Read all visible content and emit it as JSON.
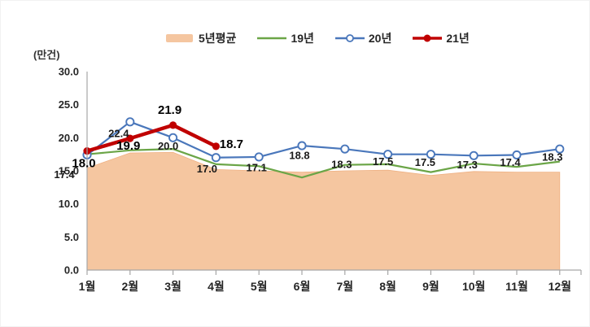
{
  "chart": {
    "unit_label": "(만건)",
    "legend": [
      {
        "label": "5년평균",
        "type": "area",
        "color": "#F5C6A0"
      },
      {
        "label": "19년",
        "type": "line",
        "color": "#6BA547"
      },
      {
        "label": "20년",
        "type": "line_open_marker",
        "color": "#4A77BB"
      },
      {
        "label": "21년",
        "type": "line_filled_marker",
        "color": "#C00000"
      }
    ]
  },
  "chart_data": {
    "type": "line",
    "title": "",
    "xlabel": "",
    "ylabel": "(만건)",
    "categories": [
      "1월",
      "2월",
      "3월",
      "4월",
      "5월",
      "6월",
      "7월",
      "8월",
      "9월",
      "10월",
      "11월",
      "12월"
    ],
    "ylim": [
      0,
      30
    ],
    "y_ticks": [
      0,
      5,
      10,
      15,
      20,
      25,
      30
    ],
    "y_tick_labels": [
      "0.0",
      "5.0",
      "10.0",
      "15.0",
      "20.0",
      "25.0",
      "30.0"
    ],
    "grid": false,
    "legend_position": "top",
    "series": [
      {
        "name": "5년평균",
        "type": "area",
        "color": "#F5C6A0",
        "data_labels": false,
        "values": [
          15.4,
          17.7,
          17.8,
          15.2,
          15.0,
          14.8,
          15.0,
          15.1,
          14.3,
          14.9,
          14.8,
          14.8
        ]
      },
      {
        "name": "19년",
        "type": "line",
        "color": "#6BA547",
        "data_labels": false,
        "values": [
          17.5,
          18.1,
          18.3,
          16.0,
          15.7,
          14.0,
          15.9,
          16.0,
          14.8,
          16.1,
          15.6,
          16.4
        ]
      },
      {
        "name": "20년",
        "type": "line",
        "marker": "open-circle",
        "color": "#4A77BB",
        "data_labels": true,
        "values": [
          17.4,
          22.4,
          20.0,
          17.0,
          17.1,
          18.8,
          18.3,
          17.5,
          17.5,
          17.3,
          17.4,
          18.3
        ]
      },
      {
        "name": "21년",
        "type": "line",
        "marker": "filled-circle",
        "color": "#C00000",
        "data_labels": true,
        "labels_bold": true,
        "values": [
          18.0,
          19.9,
          21.9,
          18.7
        ]
      }
    ]
  }
}
